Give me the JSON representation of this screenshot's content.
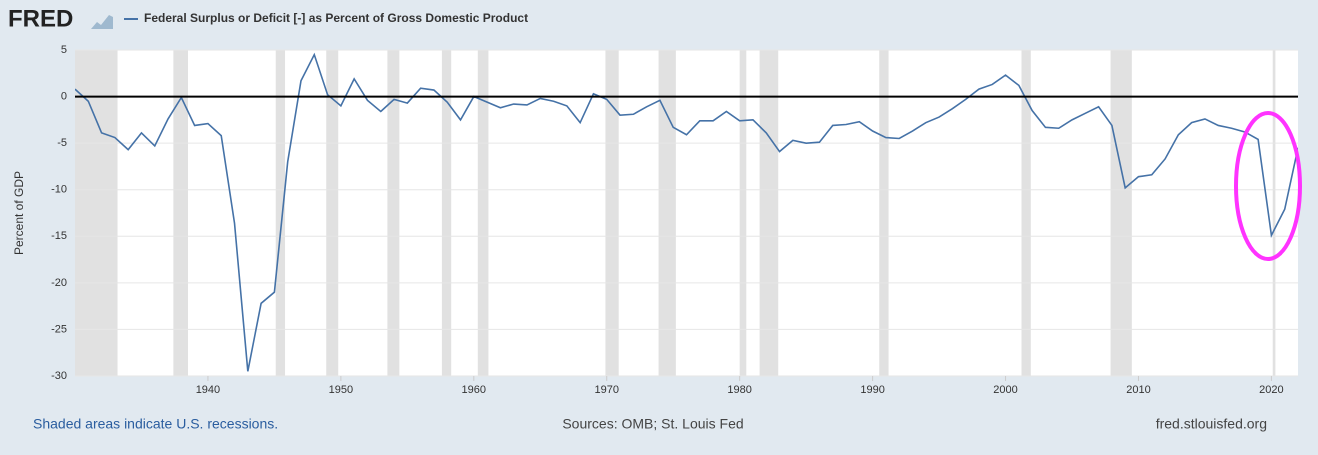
{
  "chart_data": {
    "type": "line",
    "logo": "FRED",
    "y_label": "Percent of GDP",
    "note": "Shaded areas indicate U.S. recessions.",
    "source": "Sources: OMB; St. Louis Fed",
    "site": "fred.stlouisfed.org",
    "x": [
      1930,
      1931,
      1932,
      1933,
      1934,
      1935,
      1936,
      1937,
      1938,
      1939,
      1940,
      1941,
      1942,
      1943,
      1944,
      1945,
      1946,
      1947,
      1948,
      1949,
      1950,
      1951,
      1952,
      1953,
      1954,
      1955,
      1956,
      1957,
      1958,
      1959,
      1960,
      1961,
      1962,
      1963,
      1964,
      1965,
      1966,
      1967,
      1968,
      1969,
      1970,
      1971,
      1972,
      1973,
      1974,
      1975,
      1976,
      1977,
      1978,
      1979,
      1980,
      1981,
      1982,
      1983,
      1984,
      1985,
      1986,
      1987,
      1988,
      1989,
      1990,
      1991,
      1992,
      1993,
      1994,
      1995,
      1996,
      1997,
      1998,
      1999,
      2000,
      2001,
      2002,
      2003,
      2004,
      2005,
      2006,
      2007,
      2008,
      2009,
      2010,
      2011,
      2012,
      2013,
      2014,
      2015,
      2016,
      2017,
      2018,
      2019,
      2020,
      2021,
      2022
    ],
    "series": [
      {
        "name": "Federal Surplus or Deficit [-] as Percent of Gross Domestic Product",
        "color": "#4572a7",
        "values": [
          0.8,
          -0.5,
          -3.9,
          -4.4,
          -5.7,
          -3.9,
          -5.3,
          -2.4,
          -0.1,
          -3.1,
          -2.9,
          -4.2,
          -13.6,
          -29.5,
          -22.2,
          -21.0,
          -7.0,
          1.7,
          4.5,
          0.2,
          -1.0,
          1.9,
          -0.4,
          -1.6,
          -0.3,
          -0.7,
          0.9,
          0.7,
          -0.6,
          -2.5,
          0.0,
          -0.6,
          -1.2,
          -0.8,
          -0.9,
          -0.2,
          -0.5,
          -1.0,
          -2.8,
          0.3,
          -0.3,
          -2.0,
          -1.9,
          -1.1,
          -0.4,
          -3.3,
          -4.1,
          -2.6,
          -2.6,
          -1.6,
          -2.6,
          -2.5,
          -3.9,
          -5.9,
          -4.7,
          -5.0,
          -4.9,
          -3.1,
          -3.0,
          -2.7,
          -3.7,
          -4.4,
          -4.5,
          -3.7,
          -2.8,
          -2.2,
          -1.3,
          -0.3,
          0.8,
          1.3,
          2.3,
          1.2,
          -1.5,
          -3.3,
          -3.4,
          -2.5,
          -1.8,
          -1.1,
          -3.1,
          -9.8,
          -8.6,
          -8.4,
          -6.7,
          -4.1,
          -2.8,
          -2.4,
          -3.1,
          -3.4,
          -3.8,
          -4.6,
          -14.9,
          -12.1,
          -5.5
        ]
      }
    ],
    "recessions": [
      [
        1929.6,
        1933.2
      ],
      [
        1937.4,
        1938.5
      ],
      [
        1945.1,
        1945.8
      ],
      [
        1948.9,
        1949.8
      ],
      [
        1953.5,
        1954.4
      ],
      [
        1957.6,
        1958.3
      ],
      [
        1960.3,
        1961.1
      ],
      [
        1969.9,
        1970.9
      ],
      [
        1973.9,
        1975.2
      ],
      [
        1980.0,
        1980.5
      ],
      [
        1981.5,
        1982.9
      ],
      [
        1990.5,
        1991.2
      ],
      [
        2001.2,
        2001.9
      ],
      [
        2007.9,
        2009.5
      ],
      [
        2020.1,
        2020.3
      ]
    ],
    "recession_color": "#e1e1e1",
    "xlim": [
      1930,
      2022
    ],
    "xticks": [
      1940,
      1950,
      1960,
      1970,
      1980,
      1990,
      2000,
      2010,
      2020
    ],
    "ylim": [
      -30,
      5
    ],
    "yticks": [
      5,
      0,
      -5,
      -10,
      -15,
      -20,
      -25,
      -30
    ],
    "grid": true,
    "zero_line": true
  }
}
